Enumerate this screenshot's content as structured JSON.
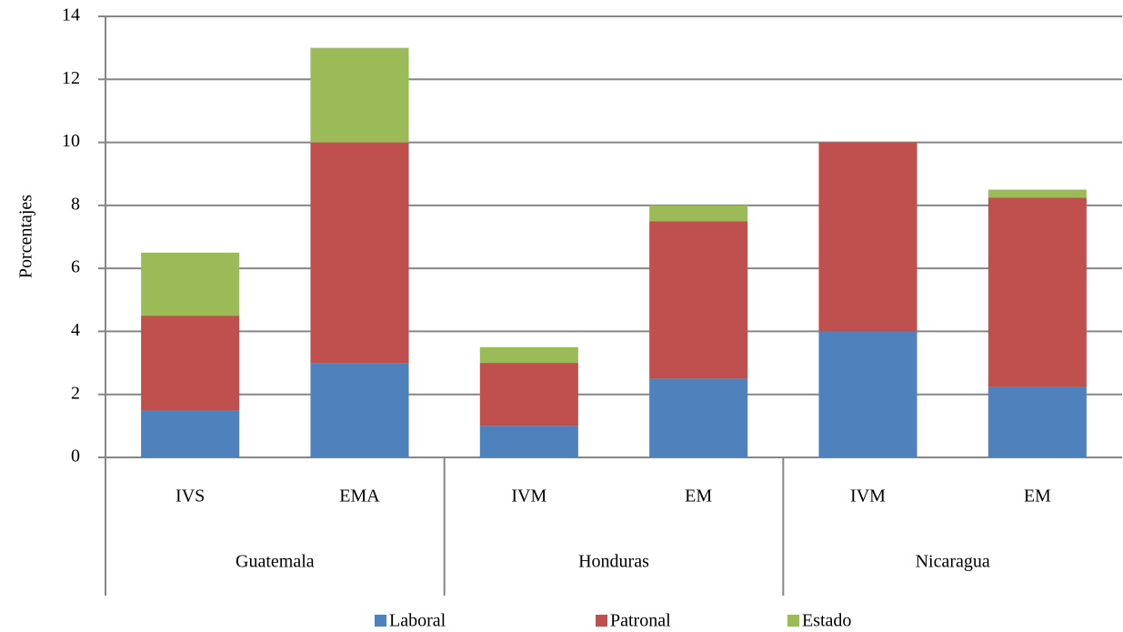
{
  "chart_data": {
    "type": "stacked-bar",
    "y_label": "Porcentajes",
    "categories": [
      "IVS",
      "EMA",
      "IVM",
      "EM",
      "IVM",
      "EM"
    ],
    "groups": [
      "Guatemala",
      "Honduras",
      "Nicaragua"
    ],
    "series": [
      {
        "name": "Laboral",
        "color": "#4f81bd",
        "values": [
          1.5,
          3,
          1,
          2.5,
          4,
          2.25
        ]
      },
      {
        "name": "Patronal",
        "color": "#c0504d",
        "values": [
          3,
          7,
          2,
          5,
          6,
          6
        ]
      },
      {
        "name": "Estado",
        "color": "#9bbb59",
        "values": [
          2,
          3,
          0.5,
          0.5,
          0,
          0.25
        ]
      }
    ],
    "ylim": [
      0,
      14
    ],
    "yticks": [
      0,
      2,
      4,
      6,
      8,
      10,
      12,
      14
    ],
    "grid": true,
    "legend": "bottom"
  }
}
